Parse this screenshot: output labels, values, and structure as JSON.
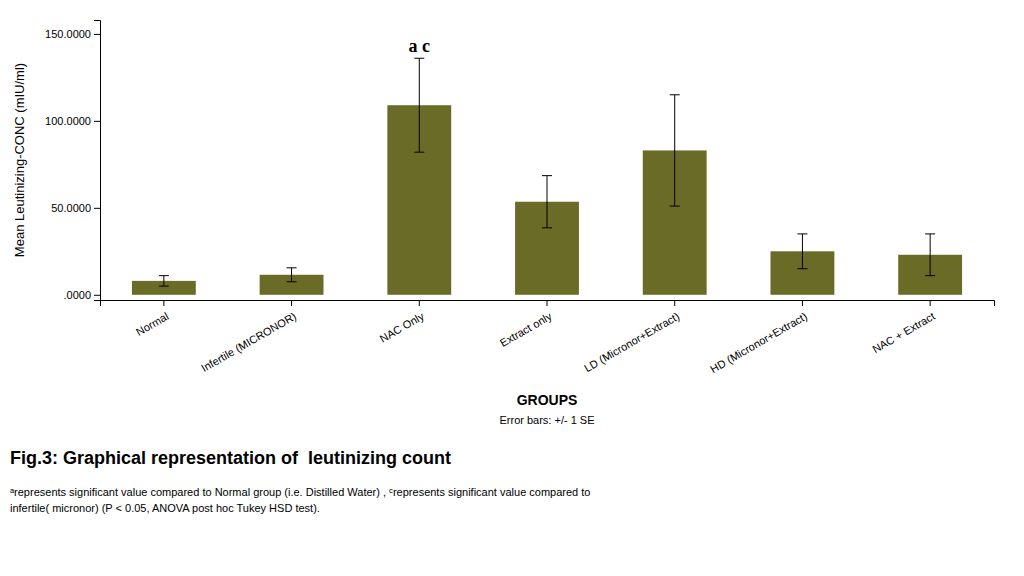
{
  "chart_data": {
    "type": "bar",
    "title": "Fig.3: Graphical representation of  leutinizing count",
    "categories": [
      "Normal",
      "Infertile (MICRONOR)",
      "NAC Only",
      "Extract only",
      "LD (Micronor+Extract)",
      "HD (Micronor+Extract)",
      "NAC + Extract"
    ],
    "values": [
      8.0,
      11.5,
      109.0,
      53.5,
      83.0,
      25.0,
      23.0
    ],
    "errors": [
      3.0,
      4.0,
      27.0,
      15.0,
      32.0,
      10.0,
      12.0
    ],
    "color": "#6b6b28",
    "xlabel": "GROUPS",
    "ylabel": "Mean Leutinizing-CONC (mIU/ml)",
    "ylim": [
      -3,
      158
    ],
    "yticks": [
      {
        "value": 0,
        "label": ".0000"
      },
      {
        "value": 50,
        "label": "50.0000"
      },
      {
        "value": 100,
        "label": "100.0000"
      },
      {
        "value": 150,
        "label": "150.0000"
      }
    ],
    "grid": false,
    "annotations": [
      {
        "text": "a c",
        "category": "NAC Only"
      },
      {
        "text": "Error bars:  +/- 1 SE"
      },
      {
        "text": "ᵃrepresents significant value compared to Normal group (i.e. Distilled Water) , ᶜrepresents significant value compared to"
      },
      {
        "text": "infertile( micronor) (P < 0.05, ANOVA post hoc Tukey HSD test)."
      }
    ]
  }
}
